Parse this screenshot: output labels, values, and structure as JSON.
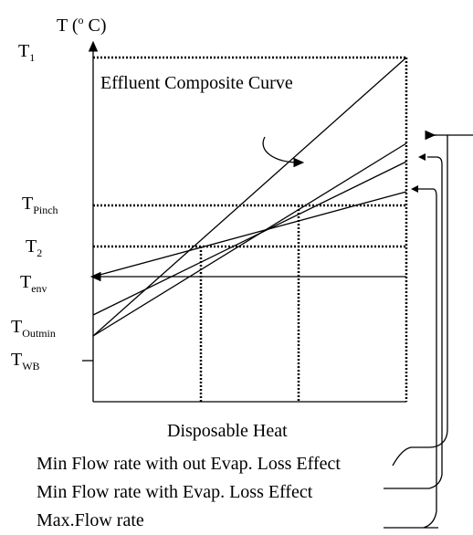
{
  "diagram": {
    "y_axis_label": {
      "before": "T (",
      "sup": "o",
      "after": " C)"
    },
    "x_axis_label": "Disposable Heat",
    "curve_label": "Effluent Composite Curve",
    "temperature_labels": [
      {
        "main": "T",
        "sub": "1"
      },
      {
        "main": "T",
        "sub": "Pinch"
      },
      {
        "main": "T",
        "sub": "2"
      },
      {
        "main": "T",
        "sub": "env"
      },
      {
        "main": "T",
        "sub": "Outmin"
      },
      {
        "main": "T",
        "sub": "WB"
      }
    ],
    "legend": [
      "Min Flow rate with out Evap. Loss Effect",
      "Min Flow rate with Evap. Loss Effect",
      "Max.Flow rate"
    ]
  }
}
